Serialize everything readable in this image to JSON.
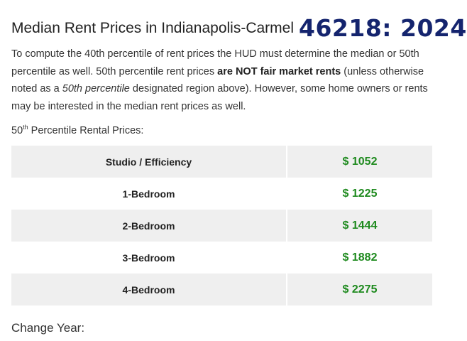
{
  "heading": "Median Rent Prices in Indianapolis-Carmel",
  "overlay_title": "46218: 2024",
  "intro": {
    "part1": "To compute the 40th percentile of rent prices the HUD must determine the median or 50th percentile as well. 50th percentile rent prices ",
    "bold": "are NOT fair market rents",
    "part2": " (unless otherwise noted as a ",
    "italic": "50th percentile",
    "part3": " designated region above). However, some home owners or rents may be interested in the median rent prices as well."
  },
  "subhead": {
    "number": "50",
    "suffix": "th",
    "text": " Percentile Rental Prices:"
  },
  "rents": [
    {
      "label": "Studio / Efficiency",
      "price": "$ 1052"
    },
    {
      "label": "1-Bedroom",
      "price": "$ 1225"
    },
    {
      "label": "2-Bedroom",
      "price": "$ 1444"
    },
    {
      "label": "3-Bedroom",
      "price": "$ 1882"
    },
    {
      "label": "4-Bedroom",
      "price": "$ 2275"
    }
  ],
  "change_year_label": "Change Year:",
  "colors": {
    "price_green": "#1e8a1e",
    "overlay_navy": "#14246e",
    "row_shade": "#efefef"
  }
}
